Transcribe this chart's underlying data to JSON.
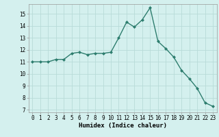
{
  "x": [
    0,
    1,
    2,
    3,
    4,
    5,
    6,
    7,
    8,
    9,
    10,
    11,
    12,
    13,
    14,
    15,
    16,
    17,
    18,
    19,
    20,
    21,
    22,
    23
  ],
  "y": [
    11.0,
    11.0,
    11.0,
    11.2,
    11.2,
    11.7,
    11.8,
    11.6,
    11.7,
    11.7,
    11.8,
    13.0,
    14.3,
    13.9,
    14.5,
    15.5,
    12.7,
    12.1,
    11.4,
    10.3,
    9.6,
    8.8,
    7.6,
    7.3
  ],
  "line_color": "#2d7d6e",
  "marker": "D",
  "marker_size": 2.0,
  "bg_color": "#d4f0ee",
  "grid_color": "#b8dbd8",
  "xlabel": "Humidex (Indice chaleur)",
  "ylim": [
    6.8,
    15.8
  ],
  "xlim": [
    -0.5,
    23.5
  ],
  "yticks": [
    7,
    8,
    9,
    10,
    11,
    12,
    13,
    14,
    15
  ],
  "xticks": [
    0,
    1,
    2,
    3,
    4,
    5,
    6,
    7,
    8,
    9,
    10,
    11,
    12,
    13,
    14,
    15,
    16,
    17,
    18,
    19,
    20,
    21,
    22,
    23
  ],
  "tick_fontsize": 5.5,
  "label_fontsize": 6.5,
  "line_width": 1.0
}
